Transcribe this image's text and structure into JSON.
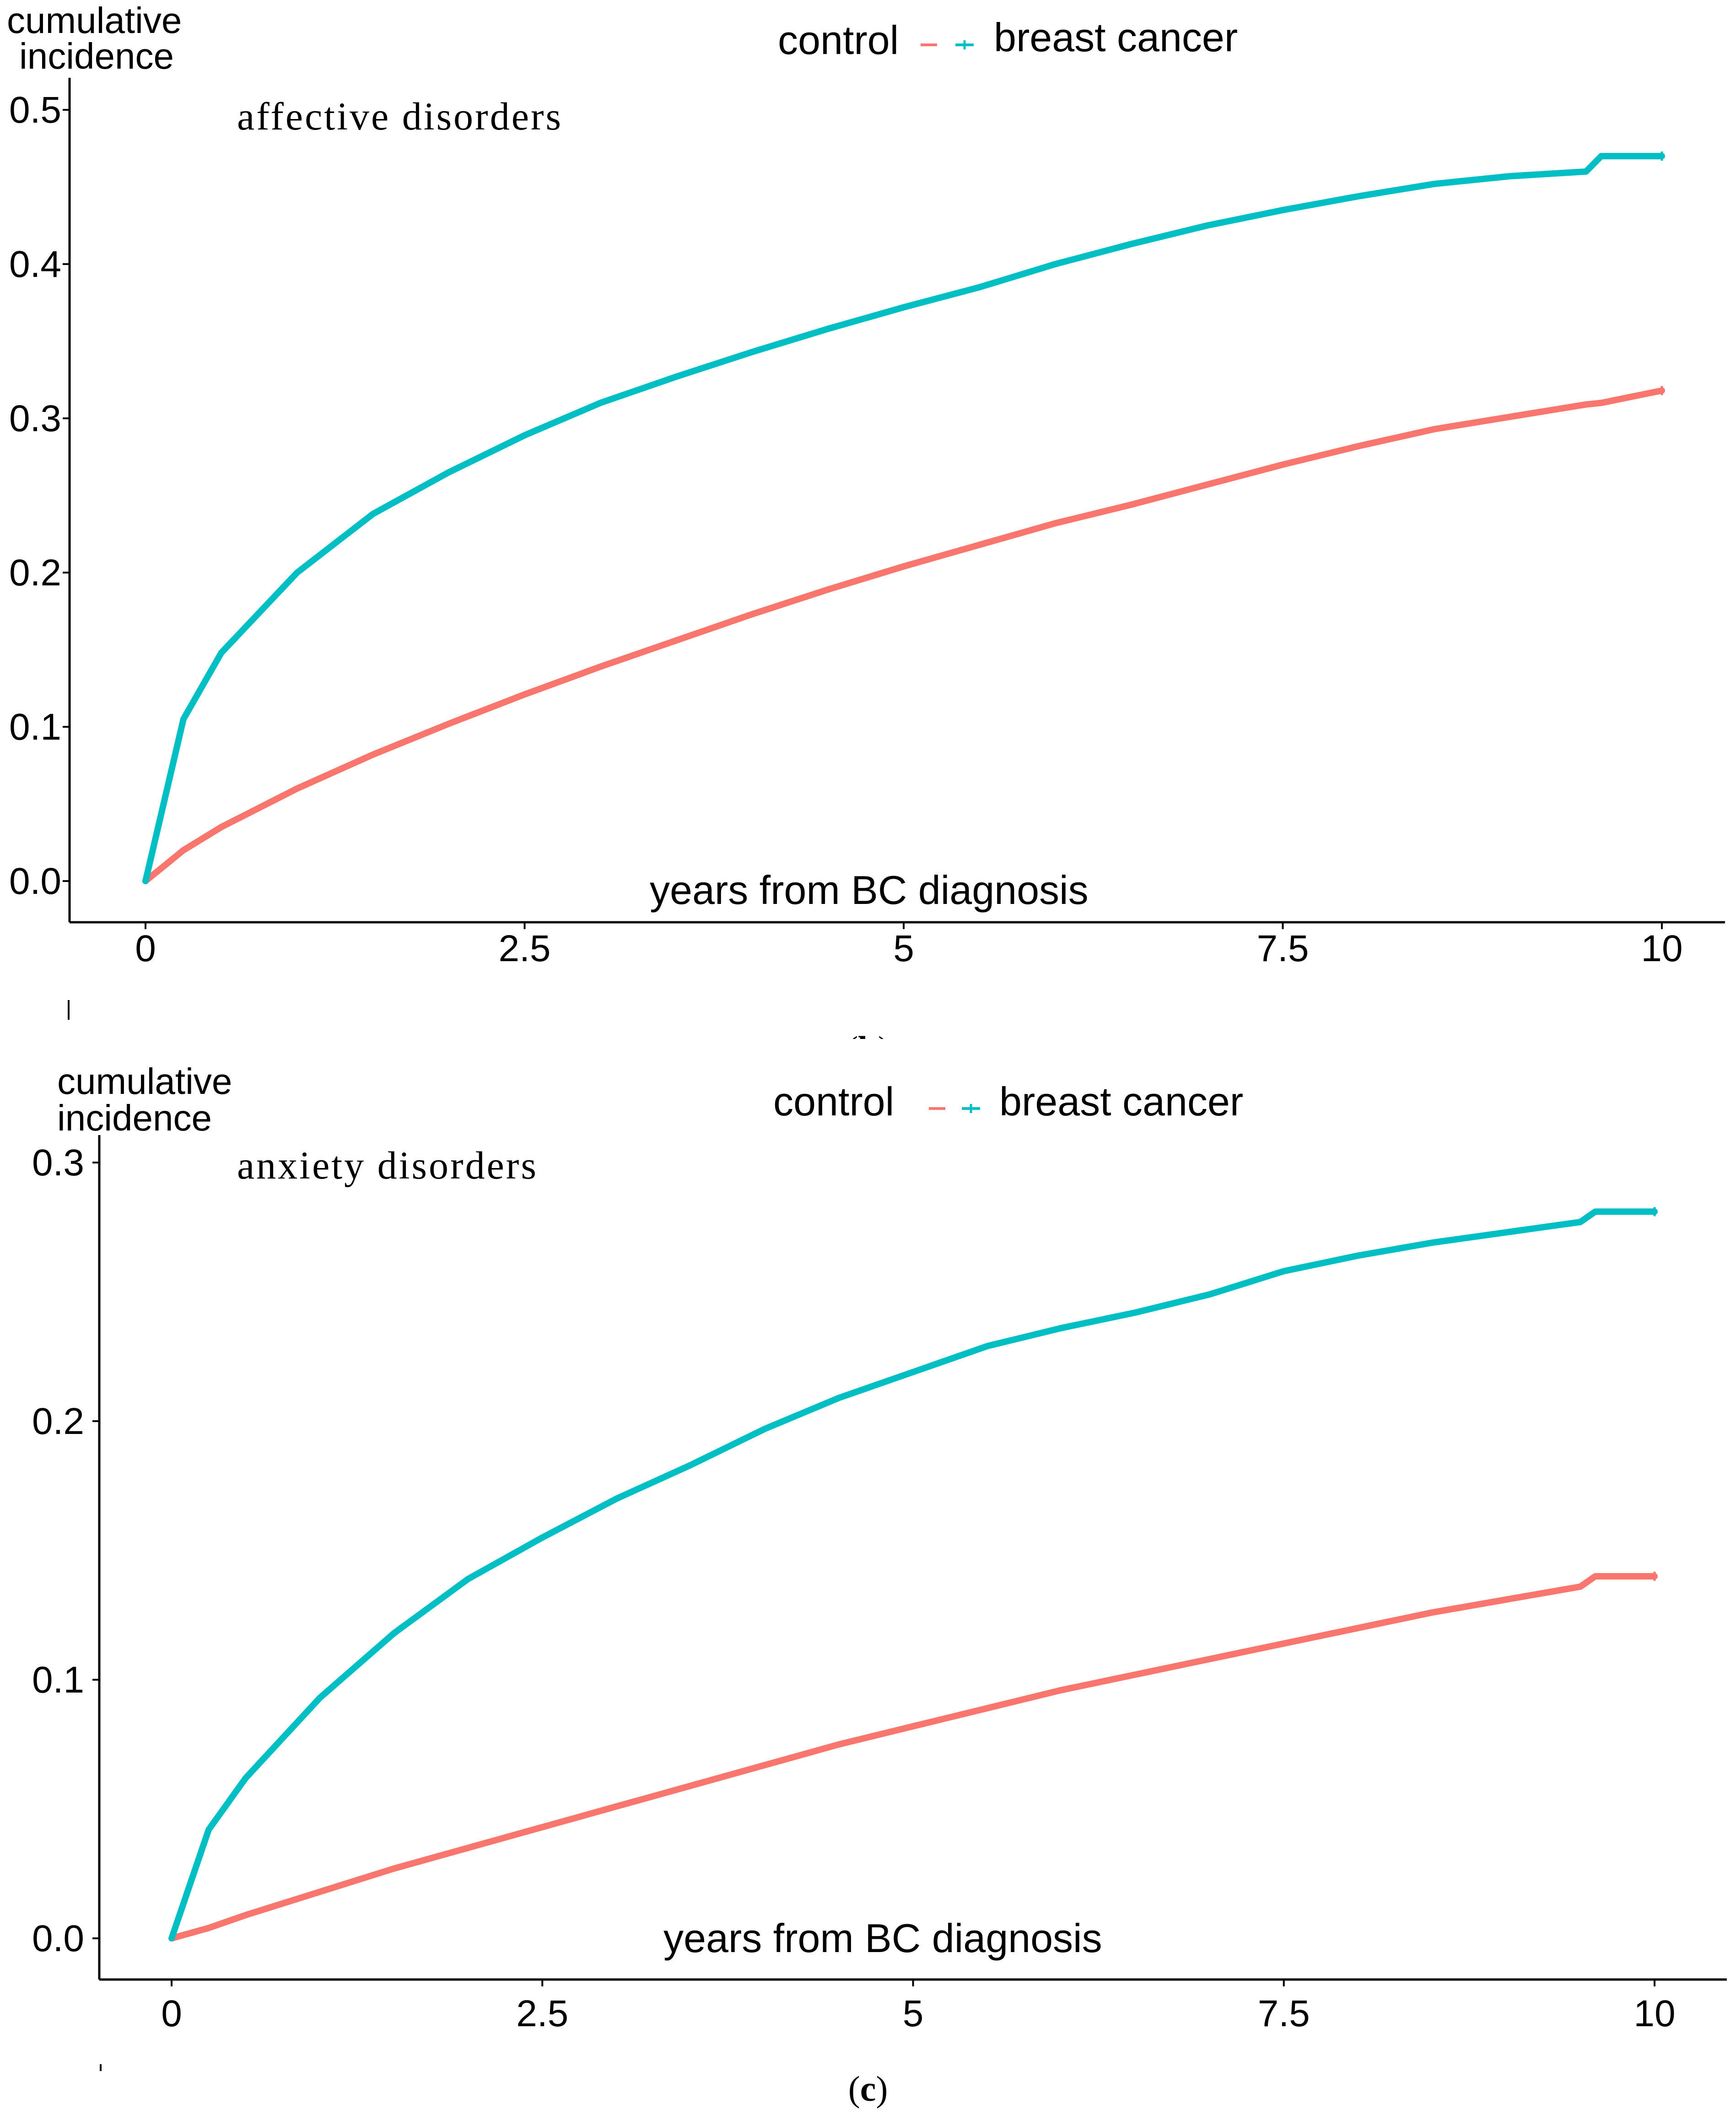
{
  "chart_data": [
    {
      "type": "line",
      "panel_label": "b",
      "title": "affective disorders",
      "ylabel_line1": "cumulative",
      "ylabel_line2": "incidence",
      "xlabel": "years from BC diagnosis",
      "xlim": [
        0,
        10
      ],
      "ylim": [
        0,
        0.5
      ],
      "xticks": [
        "0",
        "2.5",
        "5",
        "7.5",
        "10"
      ],
      "xtick_values": [
        0,
        2.5,
        5,
        7.5,
        10
      ],
      "yticks": [
        "0.0",
        "0.1",
        "0.2",
        "0.3",
        "0.4",
        "0.5"
      ],
      "ytick_values": [
        0,
        0.1,
        0.2,
        0.3,
        0.4,
        0.5
      ],
      "grid": false,
      "legend": {
        "position": "top",
        "entries": [
          "control",
          "breast cancer"
        ]
      },
      "x": [
        0,
        0.25,
        0.5,
        1,
        1.5,
        2,
        2.5,
        3,
        3.5,
        4,
        4.5,
        5,
        5.5,
        6,
        6.5,
        7,
        7.5,
        8,
        8.5,
        9,
        9.5,
        9.6,
        10
      ],
      "series": [
        {
          "name": "control",
          "color": "#f8766d",
          "values": [
            0,
            0.02,
            0.035,
            0.06,
            0.082,
            0.102,
            0.121,
            0.139,
            0.156,
            0.173,
            0.189,
            0.204,
            0.218,
            0.232,
            0.244,
            0.257,
            0.27,
            0.282,
            0.293,
            0.301,
            0.309,
            0.31,
            0.318
          ]
        },
        {
          "name": "breast cancer",
          "color": "#00bfc4",
          "values": [
            0,
            0.105,
            0.148,
            0.2,
            0.238,
            0.265,
            0.289,
            0.31,
            0.327,
            0.343,
            0.358,
            0.372,
            0.385,
            0.4,
            0.413,
            0.425,
            0.435,
            0.444,
            0.452,
            0.457,
            0.46,
            0.47,
            0.47
          ]
        }
      ]
    },
    {
      "type": "line",
      "panel_label": "c",
      "title": "anxiety disorders",
      "ylabel_line1": "cumulative",
      "ylabel_line2": "incidence",
      "xlabel": "years from BC diagnosis",
      "xlim": [
        0,
        10
      ],
      "ylim": [
        0,
        0.3
      ],
      "xticks": [
        "0",
        "2.5",
        "5",
        "7.5",
        "10"
      ],
      "xtick_values": [
        0,
        2.5,
        5,
        7.5,
        10
      ],
      "yticks": [
        "0.0",
        "0.1",
        "0.2",
        "0.3"
      ],
      "ytick_values": [
        0,
        0.1,
        0.2,
        0.3
      ],
      "grid": false,
      "legend": {
        "position": "top",
        "entries": [
          "control",
          "breast cancer"
        ]
      },
      "x": [
        0,
        0.25,
        0.5,
        1,
        1.5,
        2,
        2.5,
        3,
        3.5,
        4,
        4.5,
        5,
        5.5,
        6,
        6.5,
        7,
        7.5,
        8,
        8.5,
        9,
        9.5,
        9.6,
        10
      ],
      "series": [
        {
          "name": "control",
          "color": "#f8766d",
          "values": [
            0,
            0.004,
            0.009,
            0.018,
            0.027,
            0.035,
            0.043,
            0.051,
            0.059,
            0.067,
            0.075,
            0.082,
            0.089,
            0.096,
            0.102,
            0.108,
            0.114,
            0.12,
            0.126,
            0.131,
            0.136,
            0.14,
            0.14
          ]
        },
        {
          "name": "breast cancer",
          "color": "#00bfc4",
          "values": [
            0,
            0.042,
            0.062,
            0.093,
            0.118,
            0.139,
            0.155,
            0.17,
            0.183,
            0.197,
            0.209,
            0.219,
            0.229,
            0.236,
            0.242,
            0.249,
            0.258,
            0.264,
            0.269,
            0.273,
            0.277,
            0.281,
            0.281
          ]
        }
      ]
    }
  ]
}
